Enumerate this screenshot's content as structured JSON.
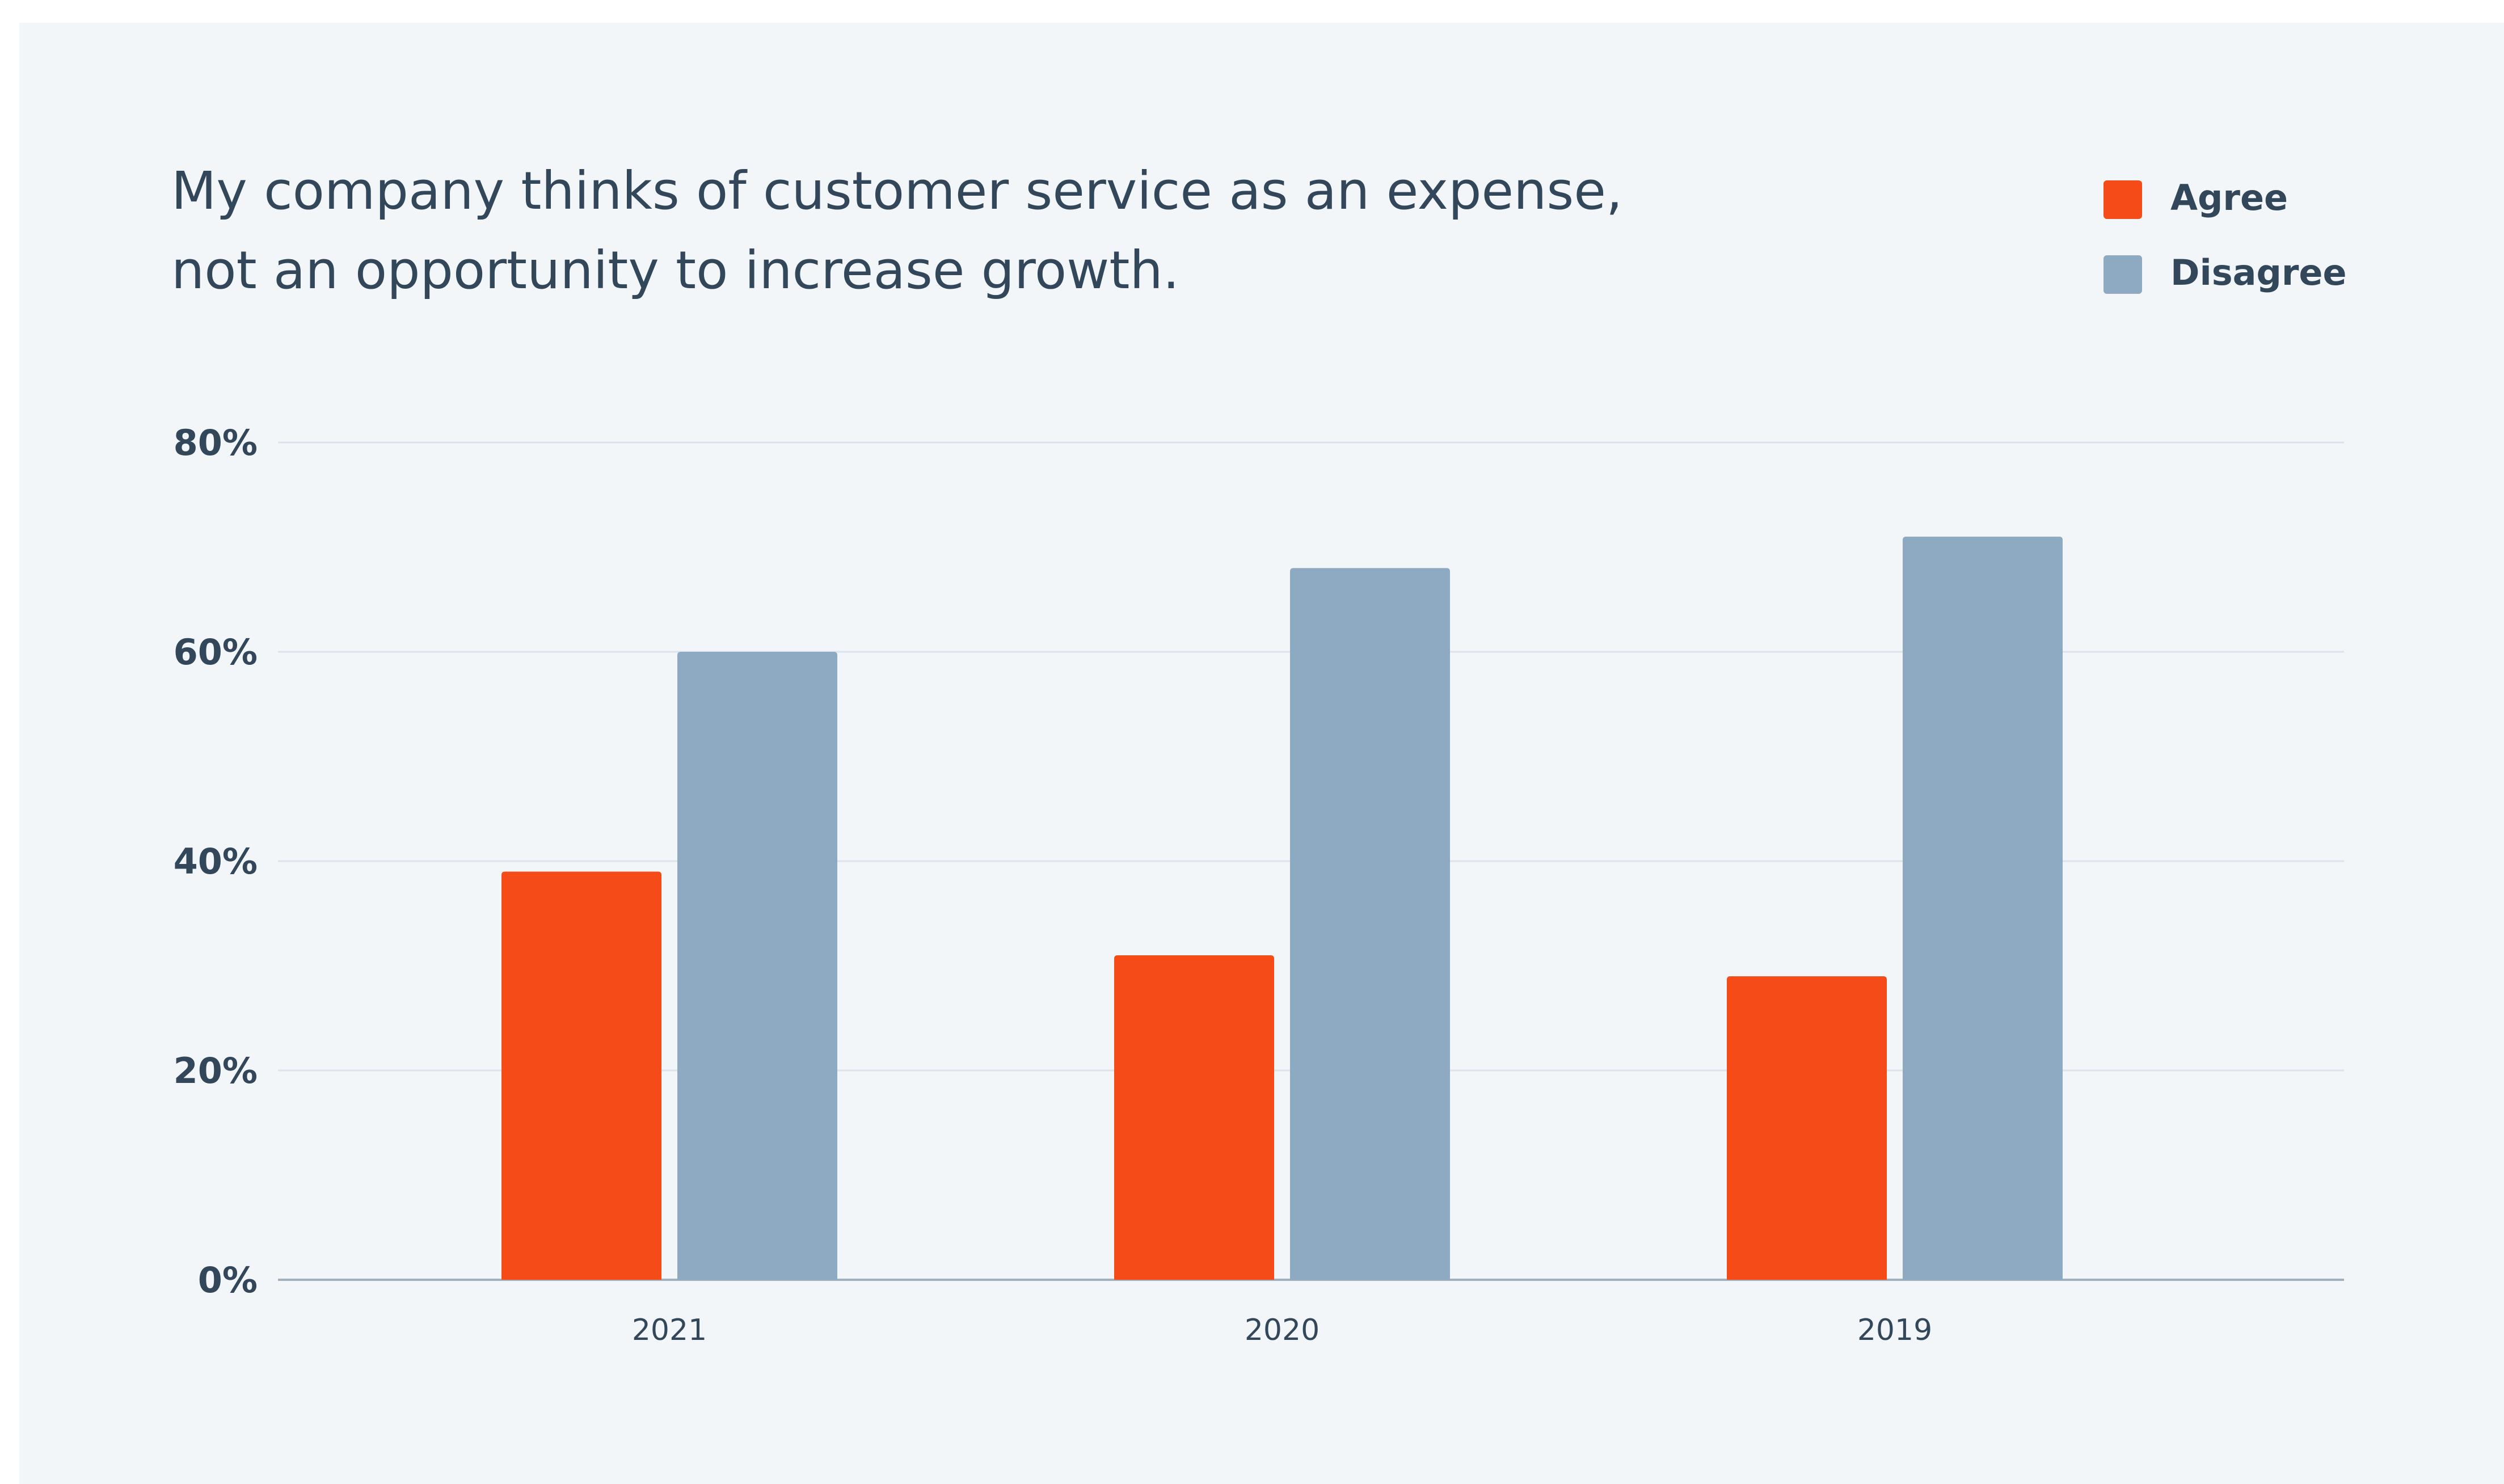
{
  "chart_data": {
    "type": "bar",
    "title_lines": [
      "My company thinks of customer service as an expense,",
      "not an opportunity to increase growth."
    ],
    "categories": [
      "2021",
      "2020",
      "2019"
    ],
    "series": [
      {
        "name": "Agree",
        "color": "#f44b19",
        "values": [
          39,
          31,
          29
        ]
      },
      {
        "name": "Disagree",
        "color": "#8eaac3",
        "values": [
          60,
          68,
          71
        ]
      }
    ],
    "ylim": [
      0,
      80
    ],
    "yticks": [
      "0%",
      "20%",
      "40%",
      "60%",
      "80%"
    ],
    "ytick_values": [
      0,
      20,
      40,
      60,
      80
    ],
    "grid": true,
    "legend_position": "top-right",
    "colors": {
      "text": "#33475b",
      "grid": "#dde3ea",
      "axis": "#9fb0c0",
      "background": "#f3f6f9"
    }
  }
}
